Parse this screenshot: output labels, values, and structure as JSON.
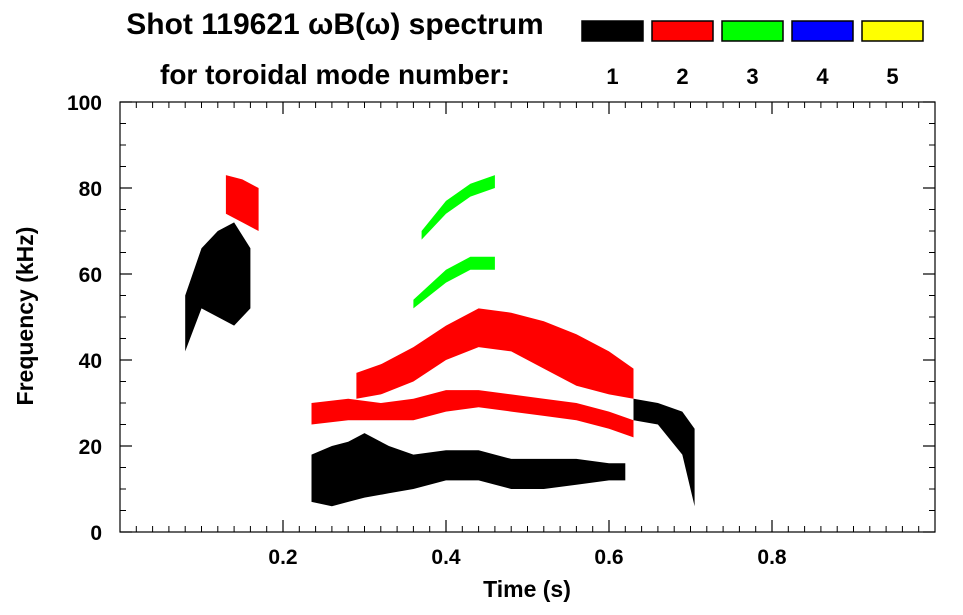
{
  "chart_data": {
    "type": "spectrogram",
    "title": "Shot 119621 ωB(ω) spectrum",
    "legend_title": "for toroidal mode number:",
    "legend": [
      {
        "label": "1",
        "color": "#000000"
      },
      {
        "label": "2",
        "color": "#ff0000"
      },
      {
        "label": "3",
        "color": "#00ff00"
      },
      {
        "label": "4",
        "color": "#0000ff"
      },
      {
        "label": "5",
        "color": "#ffff00"
      }
    ],
    "xlabel": "Time (s)",
    "ylabel": "Frequency (kHz)",
    "xlim": [
      0.0,
      1.0
    ],
    "ylim": [
      0,
      100
    ],
    "xticks": [
      0.2,
      0.4,
      0.6,
      0.8
    ],
    "yticks": [
      0,
      20,
      40,
      60,
      80,
      100
    ],
    "mode_regions": [
      {
        "mode": "1",
        "t": [
          0.08,
          0.1,
          0.12,
          0.14,
          0.16
        ],
        "f_low": [
          42,
          52,
          50,
          48,
          52
        ],
        "f_high": [
          55,
          66,
          70,
          72,
          66
        ]
      },
      {
        "mode": "1",
        "t": [
          0.235,
          0.26,
          0.28,
          0.3,
          0.33,
          0.36,
          0.4,
          0.44,
          0.48,
          0.52,
          0.56,
          0.6,
          0.62
        ],
        "f_low": [
          7,
          6,
          7,
          8,
          9,
          10,
          12,
          12,
          10,
          10,
          11,
          12,
          12
        ],
        "f_high": [
          18,
          20,
          21,
          23,
          20,
          18,
          19,
          19,
          17,
          17,
          17,
          16,
          16
        ]
      },
      {
        "mode": "1",
        "t": [
          0.63,
          0.66,
          0.69,
          0.705
        ],
        "f_low": [
          26,
          25,
          18,
          6
        ],
        "f_high": [
          31,
          30,
          28,
          24
        ]
      },
      {
        "mode": "2",
        "t": [
          0.13,
          0.15,
          0.17
        ],
        "f_low": [
          74,
          72,
          70
        ],
        "f_high": [
          83,
          82,
          80
        ]
      },
      {
        "mode": "2",
        "t": [
          0.235,
          0.28,
          0.32,
          0.36,
          0.4,
          0.44,
          0.48,
          0.52,
          0.56,
          0.6,
          0.63
        ],
        "f_low": [
          25,
          26,
          26,
          26,
          28,
          29,
          28,
          27,
          26,
          24,
          22
        ],
        "f_high": [
          30,
          31,
          30,
          31,
          33,
          33,
          32,
          31,
          30,
          28,
          26
        ]
      },
      {
        "mode": "2",
        "t": [
          0.29,
          0.32,
          0.36,
          0.4,
          0.44,
          0.48,
          0.52,
          0.56,
          0.6,
          0.63
        ],
        "f_low": [
          31,
          32,
          35,
          40,
          43,
          42,
          38,
          34,
          32,
          31
        ],
        "f_high": [
          37,
          39,
          43,
          48,
          52,
          51,
          49,
          46,
          42,
          38
        ]
      },
      {
        "mode": "3",
        "t": [
          0.37,
          0.4,
          0.43,
          0.46
        ],
        "f_low": [
          68,
          74,
          78,
          80
        ],
        "f_high": [
          70,
          77,
          81,
          83
        ]
      },
      {
        "mode": "3",
        "t": [
          0.36,
          0.4,
          0.43,
          0.46
        ],
        "f_low": [
          52,
          58,
          61,
          61
        ],
        "f_high": [
          54,
          61,
          64,
          64
        ]
      }
    ]
  }
}
